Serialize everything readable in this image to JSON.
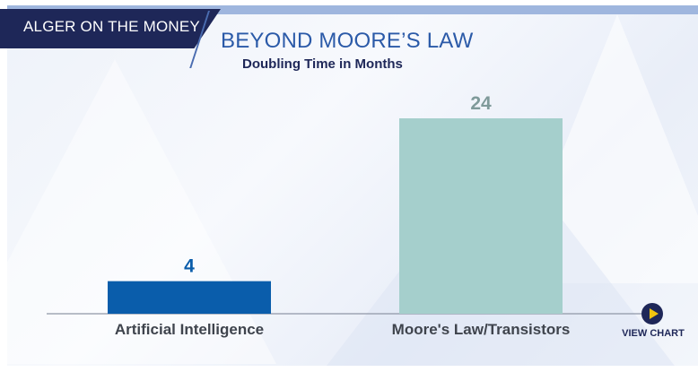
{
  "brand": {
    "label": "ALGER ON THE MONEY"
  },
  "header": {
    "title": "BEYOND MOORE’S LAW",
    "subtitle": "Doubling Time in Months"
  },
  "view_chart": {
    "label": "VIEW CHART",
    "icon": "play-icon"
  },
  "colors": {
    "navy": "#1e2758",
    "title_blue": "#2b5aa8",
    "bar_ai": "#0a5dab",
    "bar_moore": "#a5cfcc",
    "label_ai": "#0a5dab",
    "label_moore": "#7f9a9a"
  },
  "chart_data": {
    "type": "bar",
    "title": "BEYOND MOORE’S LAW",
    "subtitle": "Doubling Time in Months",
    "categories": [
      "Artificial Intelligence",
      "Moore's Law/Transistors"
    ],
    "values": [
      4,
      24
    ],
    "bar_colors": [
      "#0a5dab",
      "#a5cfcc"
    ],
    "ylim": [
      0,
      24
    ],
    "grid": false,
    "legend": "none"
  }
}
